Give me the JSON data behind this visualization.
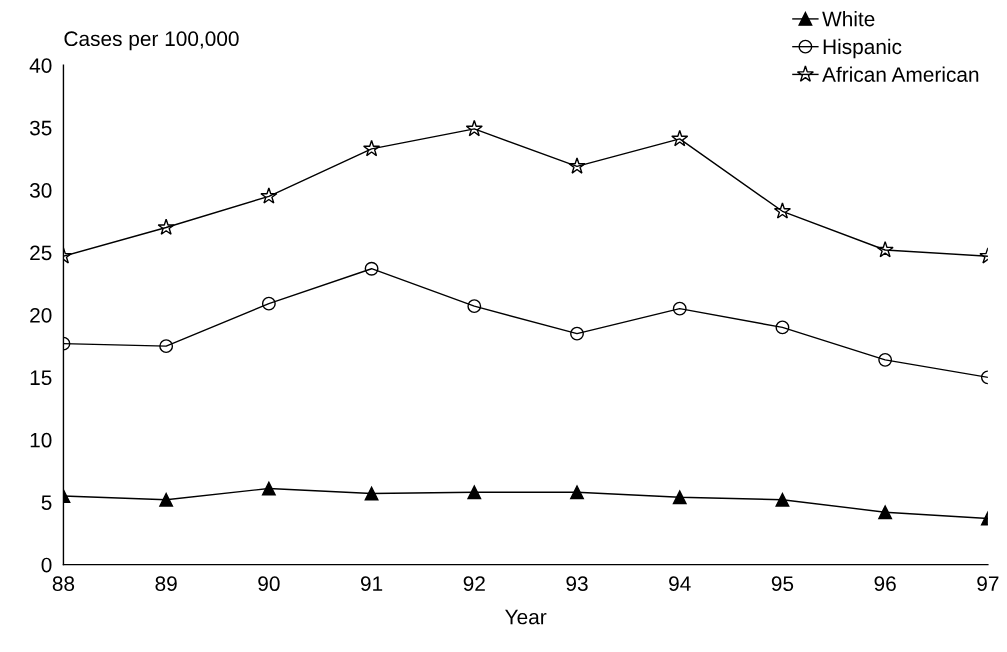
{
  "chart_data": {
    "type": "line",
    "ylabel": "Cases per 100,000",
    "xlabel": "Year",
    "x": [
      88,
      89,
      90,
      91,
      92,
      93,
      94,
      95,
      96,
      97
    ],
    "series": [
      {
        "name": "White",
        "color": "#000000",
        "marker": "triangle",
        "values": [
          5.5,
          5.2,
          6.1,
          5.7,
          5.8,
          5.8,
          5.4,
          5.2,
          4.2,
          3.7
        ]
      },
      {
        "name": "Hispanic",
        "color": "#000000",
        "marker": "circle",
        "values": [
          17.7,
          17.5,
          20.9,
          23.7,
          20.7,
          18.5,
          20.5,
          19.0,
          16.4,
          15.0
        ]
      },
      {
        "name": "African American",
        "color": "#000000",
        "marker": "star",
        "values": [
          24.7,
          27.0,
          29.5,
          33.3,
          34.9,
          31.9,
          34.1,
          28.3,
          25.2,
          24.7
        ]
      }
    ],
    "xlim": [
      88,
      97
    ],
    "xticks": [
      88,
      89,
      90,
      91,
      92,
      93,
      94,
      95,
      96,
      97
    ],
    "ylim": [
      0,
      40
    ],
    "yticks": [
      0,
      5,
      10,
      15,
      20,
      25,
      30,
      35,
      40
    ],
    "grid": false,
    "legend": "top right",
    "line_style": "solid"
  }
}
